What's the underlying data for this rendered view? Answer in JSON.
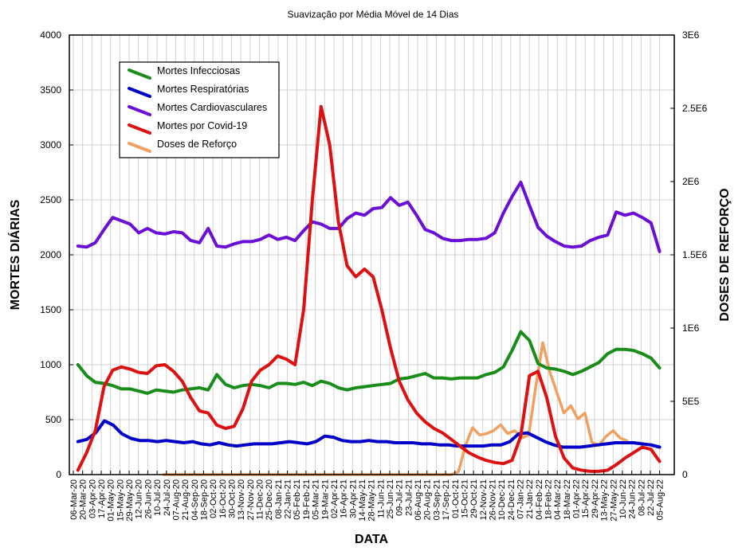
{
  "chart_data": {
    "type": "line",
    "title": "Suavização por Média Móvel de 14 Dias",
    "xlabel": "DATA",
    "ylabel": "MORTES DIÁRIAS",
    "y2label": "DOSES DE REFORÇO",
    "ylim": [
      0,
      4000
    ],
    "y2lim": [
      0,
      3000000
    ],
    "yticks": [
      0,
      500,
      1000,
      1500,
      2000,
      2500,
      3000,
      3500,
      4000
    ],
    "yticklabels": [
      "0",
      "500",
      "1000",
      "1500",
      "2000",
      "2500",
      "3000",
      "3500",
      "4000"
    ],
    "y2ticks": [
      0,
      500000,
      1000000,
      1500000,
      2000000,
      2500000,
      3000000
    ],
    "y2ticklabels": [
      "0",
      "5E5",
      "1E6",
      "1.5E6",
      "2E6",
      "2.5E6",
      "3E6"
    ],
    "grid": true,
    "legend_position": "top-left",
    "x": [
      "06-Mar-20",
      "20-Mar-20",
      "03-Apr-20",
      "17-Apr-20",
      "01-May-20",
      "15-May-20",
      "29-May-20",
      "12-Jun-20",
      "26-Jun-20",
      "10-Jul-20",
      "24-Jul-20",
      "07-Aug-20",
      "21-Aug-20",
      "04-Sep-20",
      "18-Sep-20",
      "02-Oct-20",
      "16-Oct-20",
      "30-Oct-20",
      "13-Nov-20",
      "27-Nov-20",
      "11-Dec-20",
      "25-Dec-20",
      "08-Jan-21",
      "22-Jan-21",
      "05-Feb-21",
      "19-Feb-21",
      "05-Mar-21",
      "19-Mar-21",
      "02-Apr-21",
      "16-Apr-21",
      "30-Apr-21",
      "14-May-21",
      "28-May-21",
      "11-Jun-21",
      "25-Jun-21",
      "09-Jul-21",
      "23-Jul-21",
      "06-Aug-21",
      "20-Aug-21",
      "03-Sep-21",
      "17-Sep-21",
      "01-Oct-21",
      "15-Oct-21",
      "29-Oct-21",
      "12-Nov-21",
      "26-Nov-21",
      "10-Dec-21",
      "24-Dec-21",
      "07-Jan-22",
      "21-Jan-22",
      "04-Feb-22",
      "18-Feb-22",
      "04-Mar-22",
      "18-Mar-22",
      "01-Apr-22",
      "15-Apr-22",
      "29-Apr-22",
      "13-May-22",
      "27-May-22",
      "10-Jun-22",
      "24-Jun-22",
      "08-Jul-22",
      "22-Jul-22",
      "05-Aug-22"
    ],
    "series": [
      {
        "name": "Mortes Infecciosas",
        "axis": "left",
        "color": "#1a8c1a",
        "x_start_index": 0.5,
        "values": [
          1000,
          900,
          840,
          830,
          810,
          780,
          780,
          760,
          740,
          770,
          760,
          750,
          770,
          780,
          790,
          770,
          910,
          820,
          790,
          810,
          820,
          810,
          790,
          830,
          830,
          820,
          840,
          810,
          850,
          830,
          790,
          770,
          790,
          800,
          810,
          820,
          830,
          870,
          880,
          900,
          920,
          880,
          880,
          870,
          880,
          880,
          880,
          910,
          930,
          980,
          1130,
          1300,
          1220,
          1010,
          970,
          960,
          940,
          910,
          940,
          980,
          1020,
          1100,
          1140,
          1140,
          1130,
          1100,
          1060,
          970
        ]
      },
      {
        "name": "Mortes Respiratórias",
        "axis": "left",
        "color": "#0000c8",
        "x_start_index": 0.5,
        "values": [
          300,
          320,
          380,
          490,
          450,
          370,
          330,
          310,
          310,
          300,
          310,
          300,
          290,
          300,
          280,
          270,
          290,
          270,
          260,
          270,
          280,
          280,
          280,
          290,
          300,
          290,
          280,
          300,
          350,
          340,
          310,
          300,
          300,
          310,
          300,
          300,
          290,
          290,
          290,
          280,
          280,
          270,
          270,
          260,
          260,
          260,
          260,
          270,
          270,
          300,
          370,
          380,
          340,
          300,
          270,
          250,
          250,
          250,
          260,
          270,
          280,
          290,
          290,
          290,
          280,
          270,
          250
        ]
      },
      {
        "name": "Mortes Cardiovasculares",
        "axis": "left",
        "color": "#6a0fd6",
        "x_start_index": 0.5,
        "values": [
          2080,
          2070,
          2110,
          2230,
          2340,
          2310,
          2280,
          2200,
          2240,
          2200,
          2190,
          2210,
          2200,
          2130,
          2110,
          2240,
          2080,
          2070,
          2100,
          2120,
          2120,
          2140,
          2180,
          2140,
          2160,
          2130,
          2220,
          2300,
          2280,
          2240,
          2240,
          2330,
          2380,
          2360,
          2420,
          2430,
          2520,
          2450,
          2480,
          2360,
          2230,
          2200,
          2150,
          2130,
          2130,
          2140,
          2140,
          2150,
          2200,
          2380,
          2530,
          2660,
          2450,
          2250,
          2170,
          2120,
          2080,
          2070,
          2080,
          2130,
          2160,
          2180,
          2390,
          2360,
          2380,
          2340,
          2290,
          2030
        ]
      },
      {
        "name": "Mortes por Covid-19",
        "axis": "left",
        "color": "#dd1111",
        "x_start_index": 0.5,
        "values": [
          40,
          200,
          400,
          800,
          950,
          980,
          960,
          930,
          920,
          990,
          1000,
          940,
          850,
          700,
          580,
          560,
          450,
          420,
          440,
          600,
          850,
          950,
          1000,
          1080,
          1050,
          1000,
          1500,
          2500,
          3350,
          3000,
          2300,
          1900,
          1800,
          1870,
          1800,
          1500,
          1150,
          850,
          680,
          560,
          480,
          420,
          380,
          320,
          260,
          200,
          160,
          130,
          110,
          100,
          130,
          350,
          900,
          940,
          700,
          350,
          150,
          60,
          40,
          30,
          30,
          40,
          90,
          150,
          200,
          250,
          230,
          120
        ]
      },
      {
        "name": "Doses de Reforço",
        "axis": "right",
        "color": "#f0a060",
        "x_start_index": 9,
        "values": [
          0,
          0,
          0,
          0,
          0,
          0,
          0,
          0,
          0,
          0,
          0,
          0,
          0,
          0,
          0,
          0,
          0,
          0,
          0,
          0,
          0,
          0,
          0,
          0,
          0,
          0,
          0,
          0,
          0,
          0,
          0,
          0,
          0,
          0,
          0,
          0,
          0,
          0,
          0,
          0,
          0,
          0,
          20000,
          200000,
          320000,
          270000,
          280000,
          300000,
          340000,
          280000,
          300000,
          250000,
          270000,
          600000,
          900000,
          700000,
          560000,
          420000,
          470000,
          380000,
          420000,
          220000,
          200000,
          260000,
          300000,
          250000,
          230000
        ]
      }
    ]
  }
}
